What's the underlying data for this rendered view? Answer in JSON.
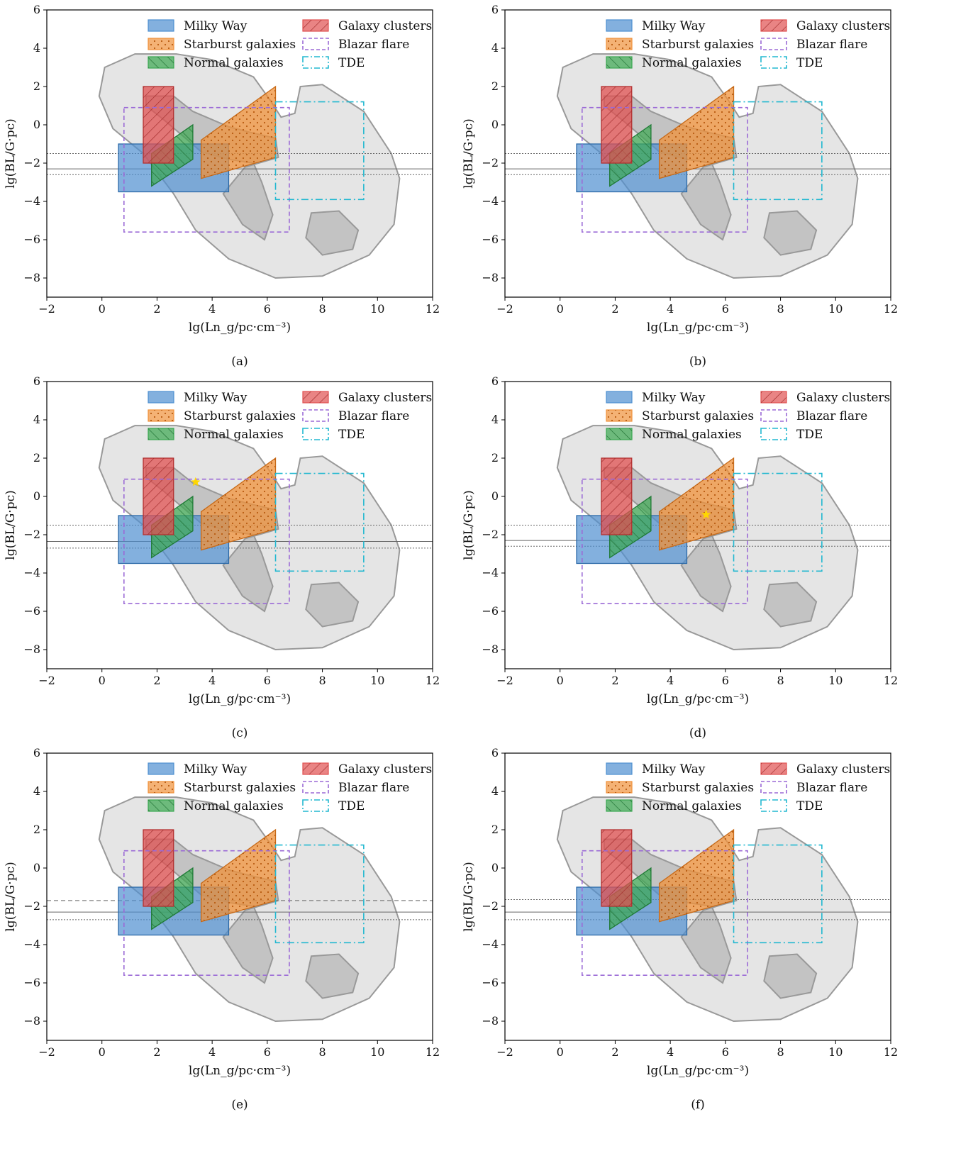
{
  "figure": {
    "panel_labels": [
      "(a)",
      "(b)",
      "(c)",
      "(d)",
      "(e)",
      "(f)"
    ]
  },
  "legend": {
    "entries": [
      "Milky Way",
      "Galaxy clusters",
      "Starburst galaxies",
      "Blazar flare",
      "Normal galaxies",
      "TDE"
    ]
  },
  "colors": {
    "milky_way": "#4e8fd0",
    "starburst": "#f0913a",
    "normal": "#3aa850",
    "clusters": "#e05050",
    "blazar": "#9b6ad6",
    "tde": "#22b8d0",
    "contour_outer": "#e5e5e5",
    "contour_inner": "#bdbdbd",
    "contour_line": "#999999",
    "star": "#ffd700"
  },
  "chart_data": [
    {
      "panel": "(a)",
      "type": "area",
      "xlabel": "lg(Ln_g/pc·cm⁻³)",
      "ylabel": "lg(BL/G·pc)",
      "xlim": [
        -2,
        12
      ],
      "ylim": [
        -9,
        6
      ],
      "xticks": [
        -2,
        0,
        2,
        4,
        6,
        8,
        10,
        12
      ],
      "yticks": [
        -8,
        -6,
        -4,
        -2,
        0,
        2,
        4,
        6
      ],
      "regions": {
        "Milky Way": {
          "x": [
            0.6,
            4.6
          ],
          "y": [
            -3.5,
            -1.0
          ]
        },
        "Galaxy clusters": {
          "x": [
            1.5,
            2.6
          ],
          "y": [
            -2.0,
            2.0
          ]
        },
        "Blazar flare": {
          "x": [
            0.8,
            6.8
          ],
          "y": [
            -5.6,
            0.9
          ]
        },
        "TDE": {
          "x": [
            6.3,
            9.5
          ],
          "y": [
            -3.9,
            1.2
          ]
        },
        "Starburst galaxies": [
          [
            3.6,
            -2.8
          ],
          [
            3.6,
            -0.8
          ],
          [
            6.3,
            2.0
          ],
          [
            6.3,
            -1.7
          ]
        ],
        "Normal galaxies": [
          [
            1.8,
            -3.2
          ],
          [
            1.8,
            -1.5
          ],
          [
            3.3,
            0.0
          ],
          [
            3.3,
            -1.8
          ]
        ]
      },
      "hlines": [
        -1.5,
        -2.3,
        -2.6
      ],
      "hline_styles": [
        "dotted",
        "solid",
        "dotted"
      ],
      "star": null
    },
    {
      "panel": "(b)",
      "type": "area",
      "xlabel": "lg(Ln_g/pc·cm⁻³)",
      "ylabel": "lg(BL/G·pc)",
      "xlim": [
        -2,
        12
      ],
      "ylim": [
        -9,
        6
      ],
      "xticks": [
        -2,
        0,
        2,
        4,
        6,
        8,
        10,
        12
      ],
      "yticks": [
        -8,
        -6,
        -4,
        -2,
        0,
        2,
        4,
        6
      ],
      "regions": {
        "Milky Way": {
          "x": [
            0.6,
            4.6
          ],
          "y": [
            -3.5,
            -1.0
          ]
        },
        "Galaxy clusters": {
          "x": [
            1.5,
            2.6
          ],
          "y": [
            -2.0,
            2.0
          ]
        },
        "Blazar flare": {
          "x": [
            0.8,
            6.8
          ],
          "y": [
            -5.6,
            0.9
          ]
        },
        "TDE": {
          "x": [
            6.3,
            9.5
          ],
          "y": [
            -3.9,
            1.2
          ]
        },
        "Starburst galaxies": [
          [
            3.6,
            -2.8
          ],
          [
            3.6,
            -0.8
          ],
          [
            6.3,
            2.0
          ],
          [
            6.3,
            -1.7
          ]
        ],
        "Normal galaxies": [
          [
            1.8,
            -3.2
          ],
          [
            1.8,
            -1.5
          ],
          [
            3.3,
            0.0
          ],
          [
            3.3,
            -1.8
          ]
        ]
      },
      "hlines": [
        -1.5,
        -2.3,
        -2.6
      ],
      "hline_styles": [
        "dotted",
        "solid",
        "dotted"
      ],
      "star": null
    },
    {
      "panel": "(c)",
      "type": "area",
      "xlabel": "lg(Ln_g/pc·cm⁻³)",
      "ylabel": "lg(BL/G·pc)",
      "xlim": [
        -2,
        12
      ],
      "ylim": [
        -9,
        6
      ],
      "xticks": [
        -2,
        0,
        2,
        4,
        6,
        8,
        10,
        12
      ],
      "yticks": [
        -8,
        -6,
        -4,
        -2,
        0,
        2,
        4,
        6
      ],
      "regions": {
        "Milky Way": {
          "x": [
            0.6,
            4.6
          ],
          "y": [
            -3.5,
            -1.0
          ]
        },
        "Galaxy clusters": {
          "x": [
            1.5,
            2.6
          ],
          "y": [
            -2.0,
            2.0
          ]
        },
        "Blazar flare": {
          "x": [
            0.8,
            6.8
          ],
          "y": [
            -5.6,
            0.9
          ]
        },
        "TDE": {
          "x": [
            6.3,
            9.5
          ],
          "y": [
            -3.9,
            1.2
          ]
        },
        "Starburst galaxies": [
          [
            3.6,
            -2.8
          ],
          [
            3.6,
            -0.8
          ],
          [
            6.3,
            2.0
          ],
          [
            6.3,
            -1.7
          ]
        ],
        "Normal galaxies": [
          [
            1.8,
            -3.2
          ],
          [
            1.8,
            -1.5
          ],
          [
            3.3,
            0.0
          ],
          [
            3.3,
            -1.8
          ]
        ]
      },
      "hlines": [
        -1.5,
        -2.35,
        -2.7
      ],
      "hline_styles": [
        "dotted",
        "solid",
        "dotted"
      ],
      "star": [
        3.4,
        0.75
      ]
    },
    {
      "panel": "(d)",
      "type": "area",
      "xlabel": "lg(Ln_g/pc·cm⁻³)",
      "ylabel": "lg(BL/G·pc)",
      "xlim": [
        -2,
        12
      ],
      "ylim": [
        -9,
        6
      ],
      "xticks": [
        -2,
        0,
        2,
        4,
        6,
        8,
        10,
        12
      ],
      "yticks": [
        -8,
        -6,
        -4,
        -2,
        0,
        2,
        4,
        6
      ],
      "regions": {
        "Milky Way": {
          "x": [
            0.6,
            4.6
          ],
          "y": [
            -3.5,
            -1.0
          ]
        },
        "Galaxy clusters": {
          "x": [
            1.5,
            2.6
          ],
          "y": [
            -2.0,
            2.0
          ]
        },
        "Blazar flare": {
          "x": [
            0.8,
            6.8
          ],
          "y": [
            -5.6,
            0.9
          ]
        },
        "TDE": {
          "x": [
            6.3,
            9.5
          ],
          "y": [
            -3.9,
            1.2
          ]
        },
        "Starburst galaxies": [
          [
            3.6,
            -2.8
          ],
          [
            3.6,
            -0.8
          ],
          [
            6.3,
            2.0
          ],
          [
            6.3,
            -1.7
          ]
        ],
        "Normal galaxies": [
          [
            1.8,
            -3.2
          ],
          [
            1.8,
            -1.5
          ],
          [
            3.3,
            0.0
          ],
          [
            3.3,
            -1.8
          ]
        ]
      },
      "hlines": [
        -1.5,
        -2.3,
        -2.6
      ],
      "hline_styles": [
        "dotted",
        "solid",
        "dotted"
      ],
      "star": [
        5.3,
        -0.95
      ]
    },
    {
      "panel": "(e)",
      "type": "area",
      "xlabel": "lg(Ln_g/pc·cm⁻³)",
      "ylabel": "lg(BL/G·pc)",
      "xlim": [
        -2,
        12
      ],
      "ylim": [
        -9,
        6
      ],
      "xticks": [
        -2,
        0,
        2,
        4,
        6,
        8,
        10,
        12
      ],
      "yticks": [
        -8,
        -6,
        -4,
        -2,
        0,
        2,
        4,
        6
      ],
      "regions": {
        "Milky Way": {
          "x": [
            0.6,
            4.6
          ],
          "y": [
            -3.5,
            -1.0
          ]
        },
        "Galaxy clusters": {
          "x": [
            1.5,
            2.6
          ],
          "y": [
            -2.0,
            2.0
          ]
        },
        "Blazar flare": {
          "x": [
            0.8,
            6.8
          ],
          "y": [
            -5.6,
            0.9
          ]
        },
        "TDE": {
          "x": [
            6.3,
            9.5
          ],
          "y": [
            -3.9,
            1.2
          ]
        },
        "Starburst galaxies": [
          [
            3.6,
            -2.8
          ],
          [
            3.6,
            -0.8
          ],
          [
            6.3,
            2.0
          ],
          [
            6.3,
            -1.7
          ]
        ],
        "Normal galaxies": [
          [
            1.8,
            -3.2
          ],
          [
            1.8,
            -1.5
          ],
          [
            3.3,
            0.0
          ],
          [
            3.3,
            -1.8
          ]
        ]
      },
      "hlines": [
        -1.7,
        -2.3,
        -2.7
      ],
      "hline_styles": [
        "dashed",
        "solid",
        "dotted"
      ],
      "star": null
    },
    {
      "panel": "(f)",
      "type": "area",
      "xlabel": "lg(Ln_g/pc·cm⁻³)",
      "ylabel": "lg(BL/G·pc)",
      "xlim": [
        -2,
        12
      ],
      "ylim": [
        -9,
        6
      ],
      "xticks": [
        -2,
        0,
        2,
        4,
        6,
        8,
        10,
        12
      ],
      "yticks": [
        -8,
        -6,
        -4,
        -2,
        0,
        2,
        4,
        6
      ],
      "regions": {
        "Milky Way": {
          "x": [
            0.6,
            4.6
          ],
          "y": [
            -3.5,
            -1.0
          ]
        },
        "Galaxy clusters": {
          "x": [
            1.5,
            2.6
          ],
          "y": [
            -2.0,
            2.0
          ]
        },
        "Blazar flare": {
          "x": [
            0.8,
            6.8
          ],
          "y": [
            -5.6,
            0.9
          ]
        },
        "TDE": {
          "x": [
            6.3,
            9.5
          ],
          "y": [
            -3.9,
            1.2
          ]
        },
        "Starburst galaxies": [
          [
            3.6,
            -2.8
          ],
          [
            3.6,
            -0.8
          ],
          [
            6.3,
            2.0
          ],
          [
            6.3,
            -1.7
          ]
        ],
        "Normal galaxies": [
          [
            1.8,
            -3.2
          ],
          [
            1.8,
            -1.5
          ],
          [
            3.3,
            0.0
          ],
          [
            3.3,
            -1.8
          ]
        ]
      },
      "hlines": [
        -1.65,
        -2.3,
        -2.7
      ],
      "hline_styles": [
        "dotted",
        "solid",
        "dotted"
      ],
      "star": null
    }
  ]
}
